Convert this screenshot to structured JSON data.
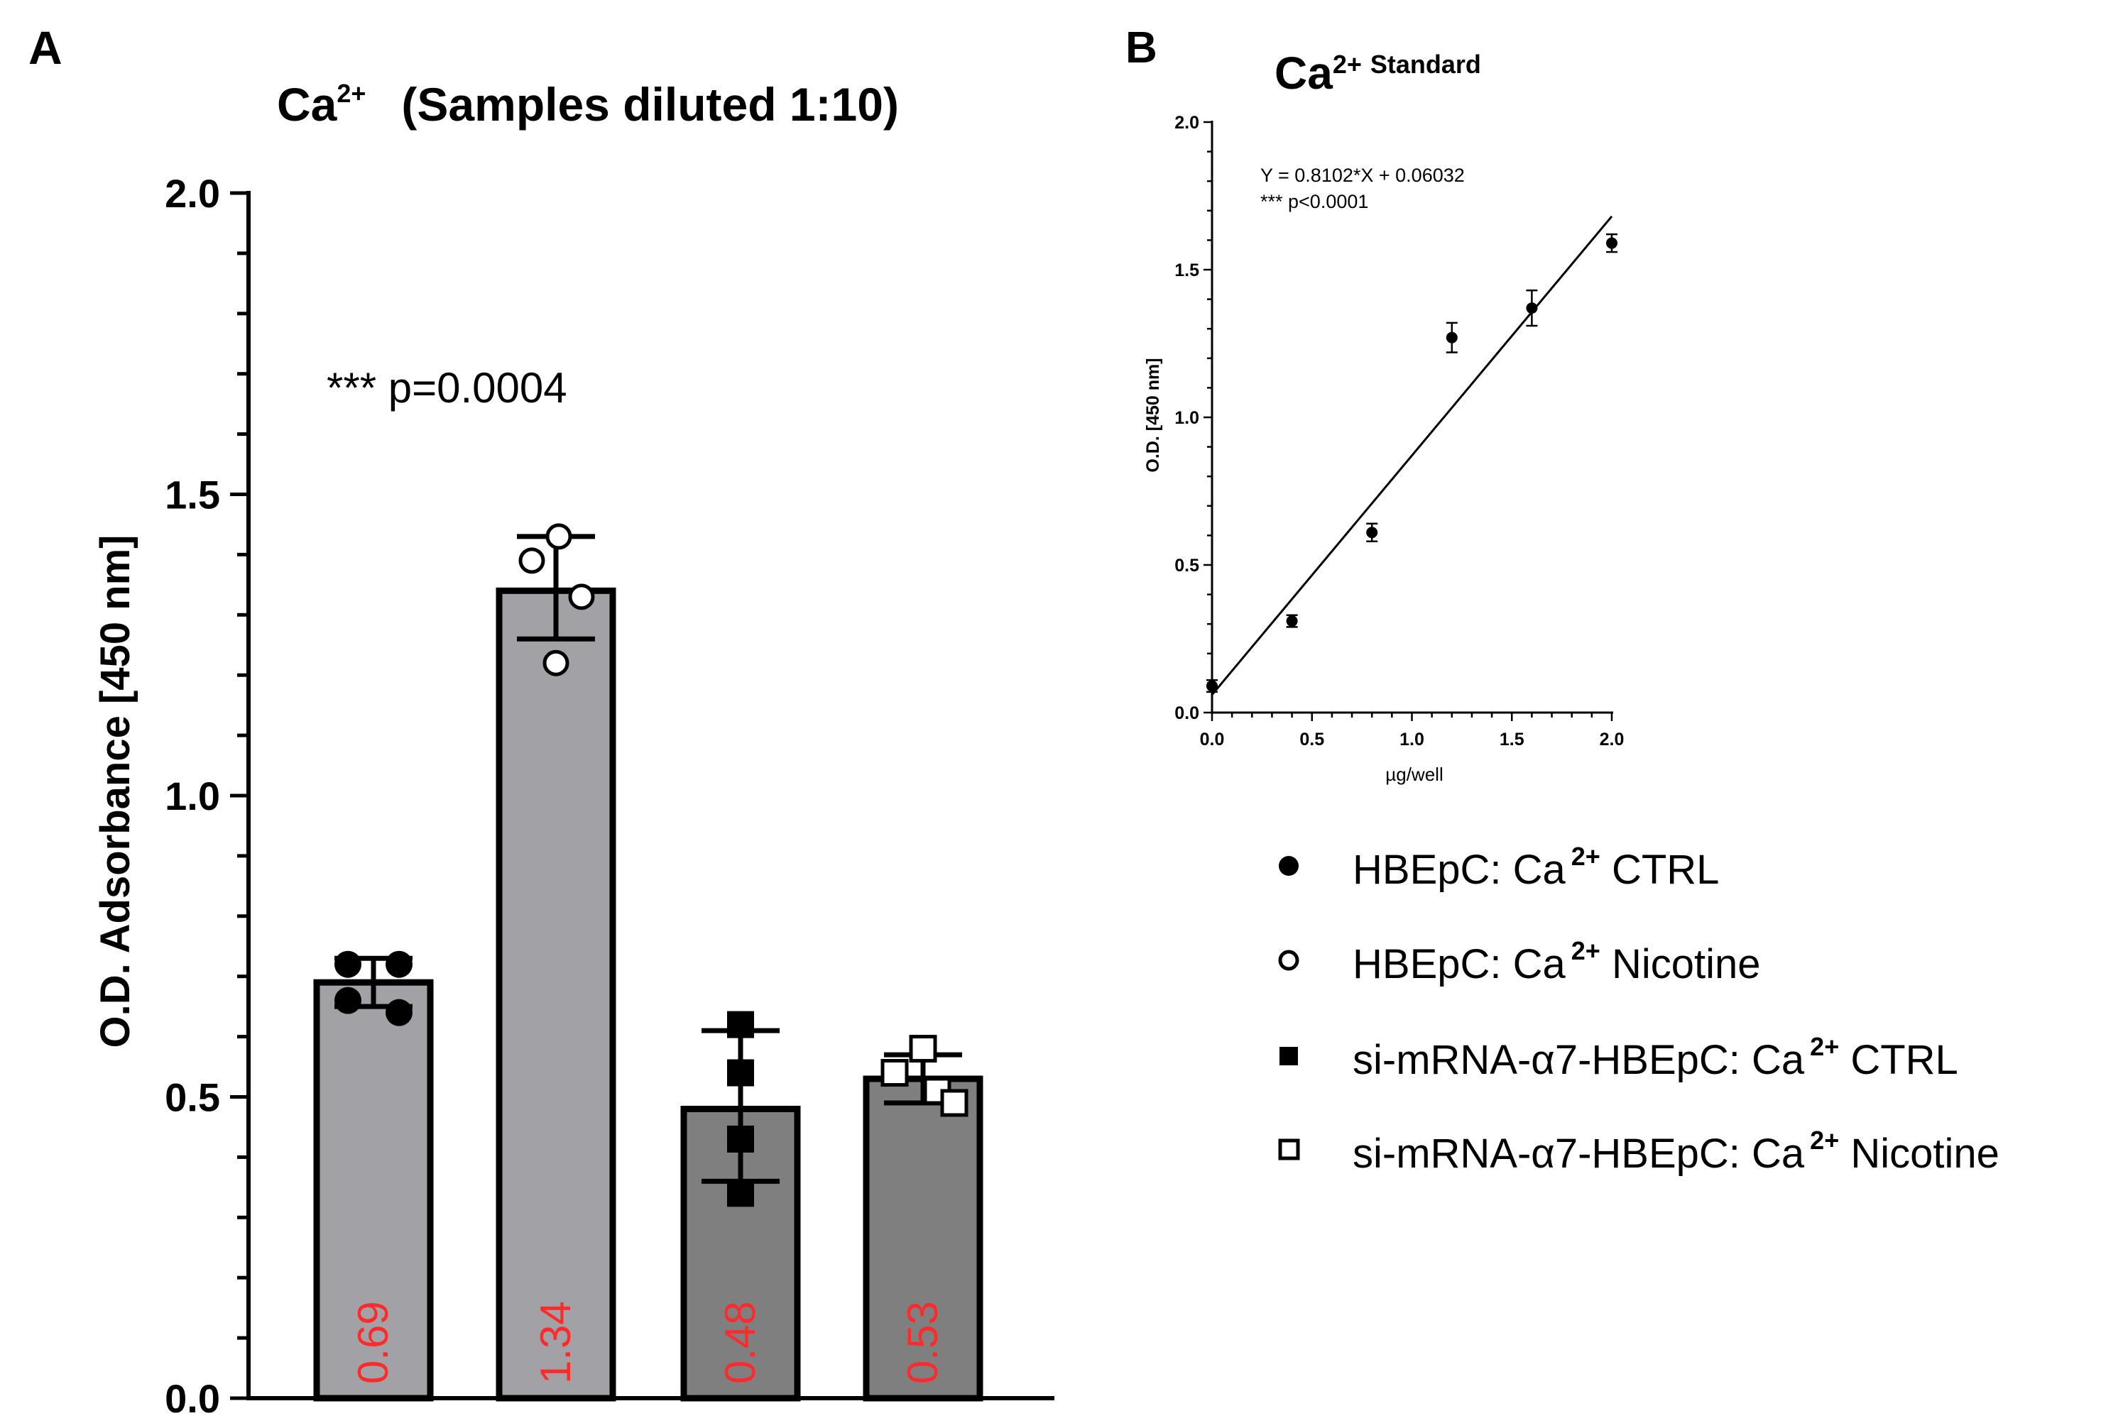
{
  "panel_labels": {
    "a": "A",
    "b": "B"
  },
  "colors": {
    "bar_light": "#a1a1a6",
    "bar_dark": "#7f7f80",
    "value_label": "#ff2a2a",
    "ink": "#000000"
  },
  "chart_data": [
    {
      "id": "panel-a",
      "type": "bar",
      "title_main": "Ca",
      "title_sup": "2+",
      "title_rest": "(Samples diluted 1:10)",
      "ylabel": "O.D. Adsorbance [450 nm]",
      "xlabel": "",
      "ylim": [
        0,
        2.0
      ],
      "yticks": [
        "0.0",
        "0.5",
        "1.0",
        "1.5",
        "2.0"
      ],
      "annotation": "*** p=0.0004",
      "categories": [
        "HBEpC: Ca2+ CTRL",
        "HBEpC: Ca2+ Nicotine",
        "si-mRNA-α7-HBEpC: Ca2+ CTRL",
        "si-mRNA-α7-HBEpC: Ca2+ Nicotine"
      ],
      "values": [
        0.69,
        1.34,
        0.48,
        0.53
      ],
      "value_labels": [
        "0.69",
        "1.34",
        "0.48",
        "0.53"
      ],
      "error_low": [
        0.65,
        1.26,
        0.36,
        0.49
      ],
      "error_high": [
        0.73,
        1.43,
        0.61,
        0.57
      ],
      "bar_tone": [
        "light",
        "light",
        "dark",
        "dark"
      ],
      "marker": [
        "filled-circle",
        "open-circle",
        "filled-square",
        "open-square"
      ],
      "points": [
        [
          [
            -0.18,
            0.72
          ],
          [
            0.18,
            0.72
          ],
          [
            -0.18,
            0.66
          ],
          [
            0.18,
            0.64
          ]
        ],
        [
          [
            -0.17,
            1.39
          ],
          [
            0.02,
            1.43
          ],
          [
            0.18,
            1.33
          ],
          [
            0.0,
            1.22
          ]
        ],
        [
          [
            0.0,
            0.62
          ],
          [
            0.0,
            0.54
          ],
          [
            0.0,
            0.43
          ],
          [
            0.0,
            0.34
          ]
        ],
        [
          [
            -0.2,
            0.54
          ],
          [
            0.0,
            0.58
          ],
          [
            0.1,
            0.51
          ],
          [
            0.22,
            0.49
          ]
        ]
      ]
    },
    {
      "id": "panel-b",
      "type": "scatter",
      "title_main": "Ca",
      "title_sup": "2+",
      "title_rest": "Standard",
      "xlabel": "µg/well",
      "ylabel": "O.D. [450 nm]",
      "xlim": [
        0,
        2.0
      ],
      "ylim": [
        0,
        2.0
      ],
      "xticks": [
        "0.0",
        "0.5",
        "1.0",
        "1.5",
        "2.0"
      ],
      "yticks": [
        "0.0",
        "0.5",
        "1.0",
        "1.5",
        "2.0"
      ],
      "equation": "Y = 0.8102*X + 0.06032",
      "significance": "*** p<0.0001",
      "fit": {
        "slope": 0.8102,
        "intercept": 0.06032,
        "x_from": 0,
        "x_to": 2.0
      },
      "x": [
        0.0,
        0.4,
        0.8,
        1.2,
        1.6,
        2.0
      ],
      "y": [
        0.09,
        0.31,
        0.61,
        1.27,
        1.37,
        1.59
      ],
      "err": [
        0.02,
        0.02,
        0.03,
        0.05,
        0.06,
        0.03
      ]
    }
  ],
  "legend": [
    {
      "marker": "filled-circle",
      "prefix": "HBEpC: Ca",
      "sup": "2+",
      "suffix": " CTRL"
    },
    {
      "marker": "open-circle",
      "prefix": "HBEpC: Ca",
      "sup": "2+",
      "suffix": " Nicotine"
    },
    {
      "marker": "filled-square",
      "prefix": "si-mRNA-α7-HBEpC: Ca",
      "sup": "2+",
      "suffix": " CTRL"
    },
    {
      "marker": "open-square",
      "prefix": "si-mRNA-α7-HBEpC: Ca",
      "sup": "2+",
      "suffix": " Nicotine"
    }
  ]
}
